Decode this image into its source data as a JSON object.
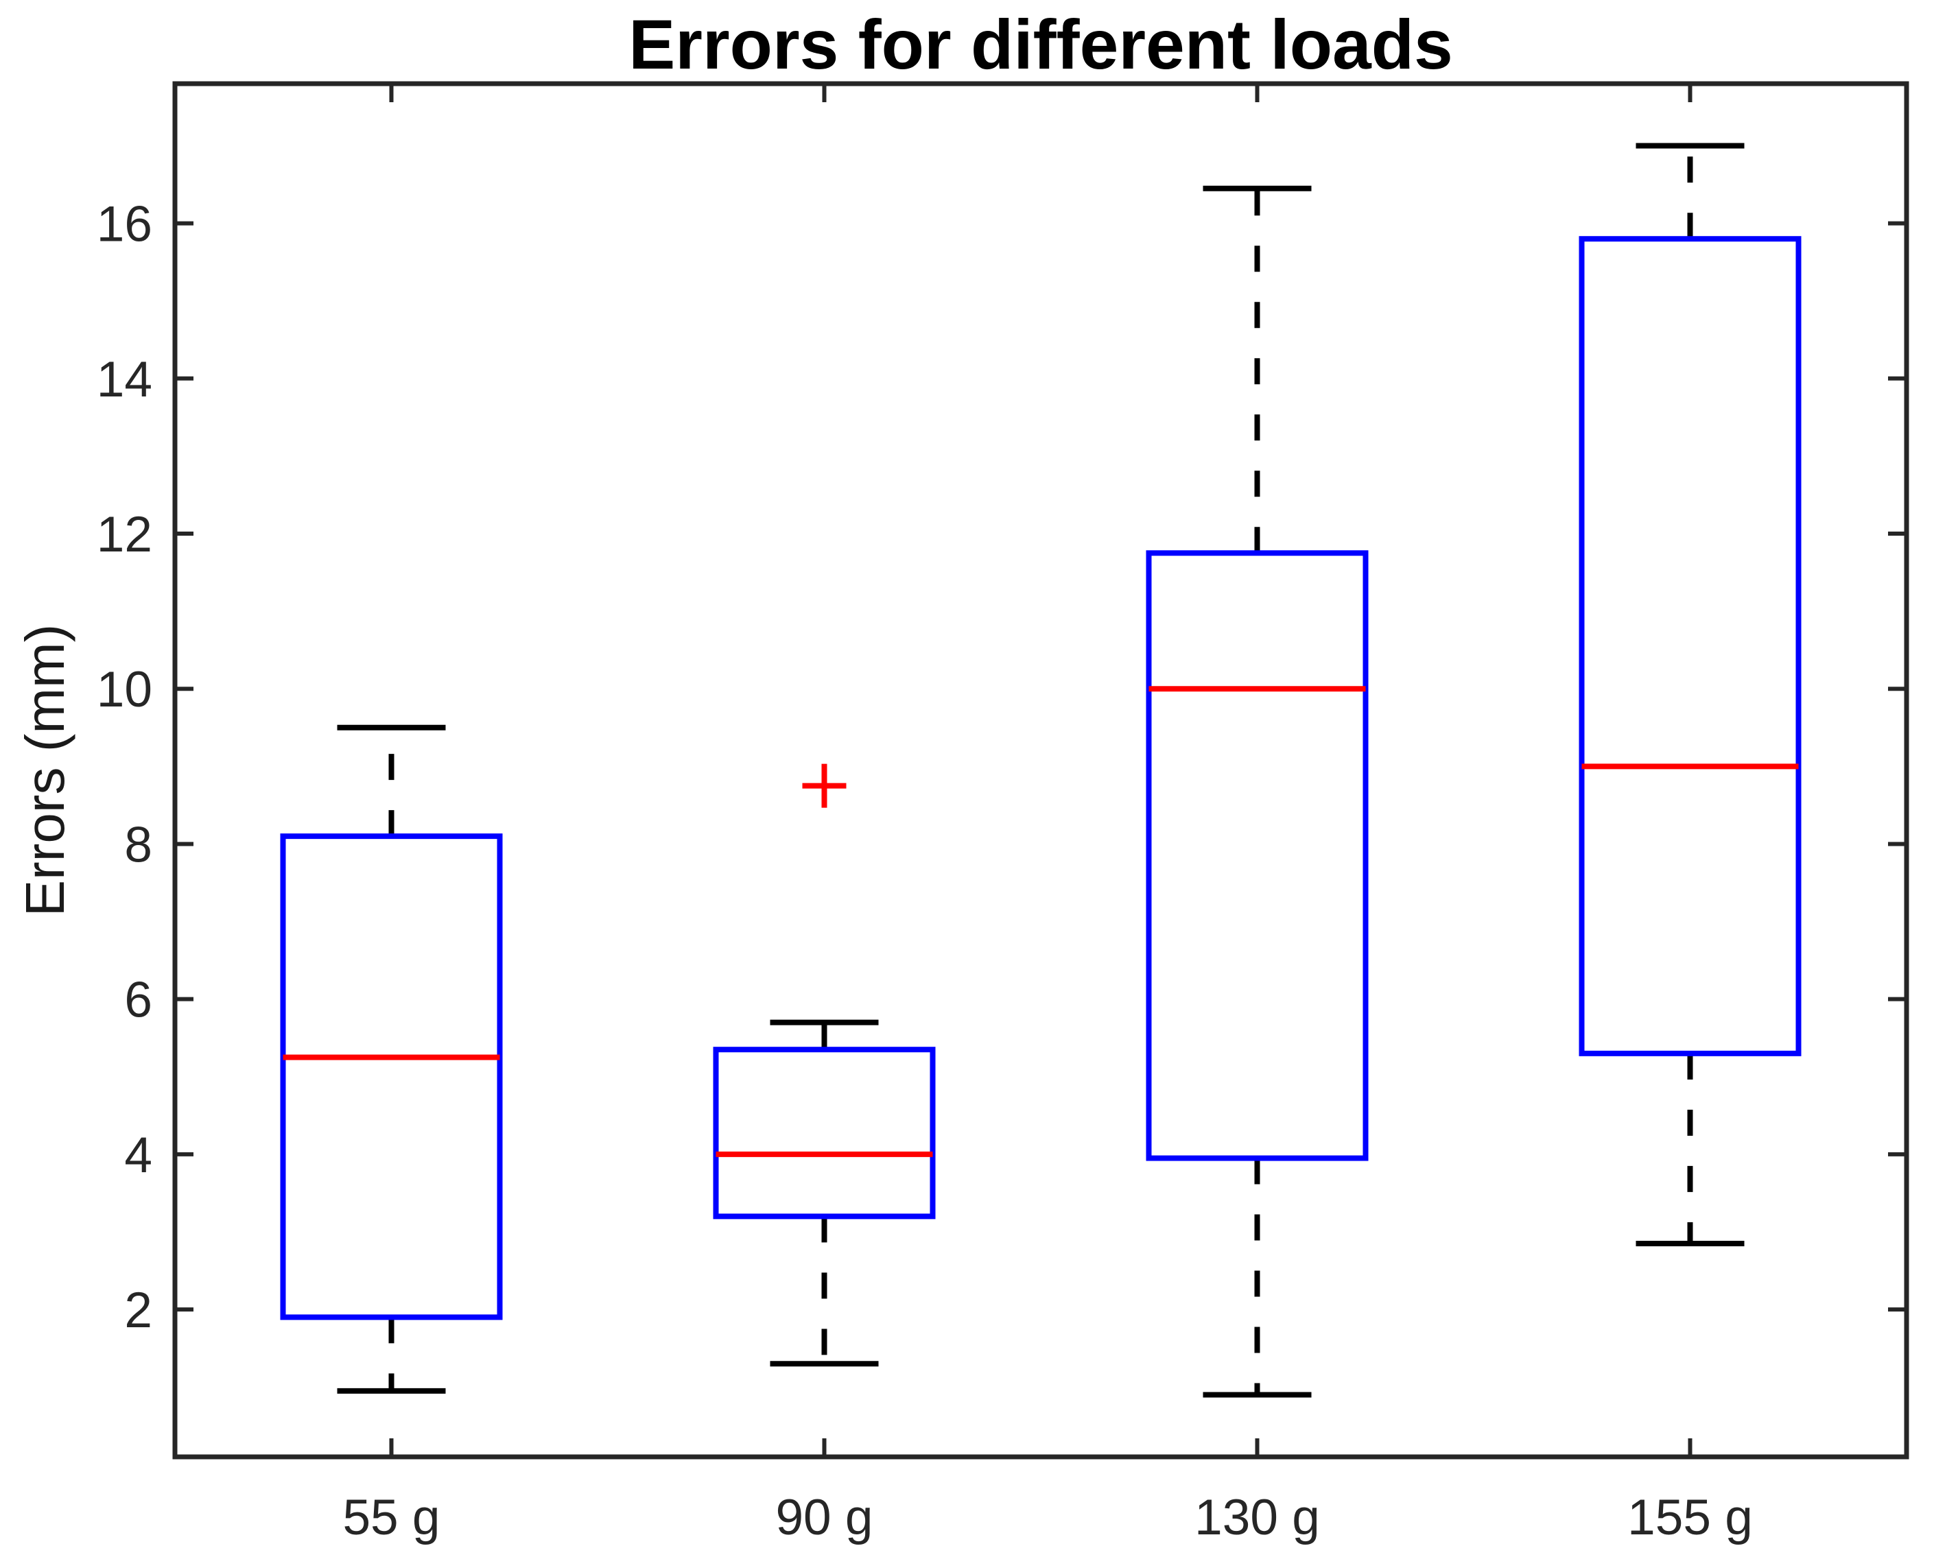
{
  "figure": {
    "background": "#ffffff"
  },
  "chart_data": {
    "type": "boxplot",
    "title": "Errors for different loads",
    "xlabel": "",
    "ylabel": "Errors (mm)",
    "categories": [
      "55 g",
      "90 g",
      "130 g",
      "155 g"
    ],
    "yticks": [
      2,
      4,
      6,
      8,
      10,
      12,
      14,
      16
    ],
    "ylim": [
      0.1,
      17.8
    ],
    "grid": false,
    "legend": "none",
    "series": [
      {
        "label": "55 g",
        "whisker_low": 0.95,
        "q1": 1.9,
        "median": 5.25,
        "q3": 8.1,
        "whisker_high": 9.5,
        "outliers": []
      },
      {
        "label": "90 g",
        "whisker_low": 1.3,
        "q1": 3.2,
        "median": 4.0,
        "q3": 5.35,
        "whisker_high": 5.7,
        "outliers": [
          8.75
        ]
      },
      {
        "label": "130 g",
        "whisker_low": 0.9,
        "q1": 3.95,
        "median": 10.0,
        "q3": 11.75,
        "whisker_high": 16.45,
        "outliers": []
      },
      {
        "label": "155 g",
        "whisker_low": 2.85,
        "q1": 5.3,
        "median": 9.0,
        "q3": 15.8,
        "whisker_high": 17.0,
        "outliers": []
      }
    ],
    "colors": {
      "box": "#0000ff",
      "median": "#ff0000",
      "whisker": "#000000",
      "cap": "#000000",
      "outlier": "#ff0000",
      "axis": "#262626",
      "tick_label": "#262626",
      "title": "#000000"
    }
  }
}
